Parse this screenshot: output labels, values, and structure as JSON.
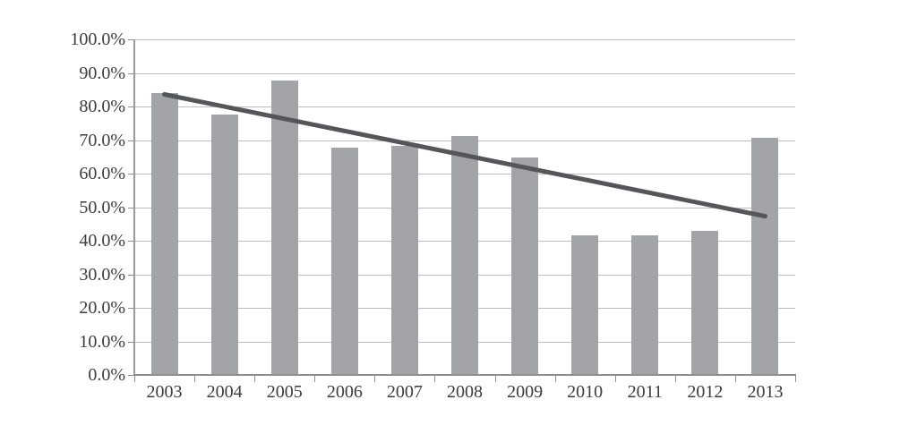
{
  "chart_data": {
    "type": "bar",
    "title": "",
    "xlabel": "",
    "ylabel": "",
    "categories": [
      "2003",
      "2004",
      "2005",
      "2006",
      "2007",
      "2008",
      "2009",
      "2010",
      "2011",
      "2012",
      "2013"
    ],
    "values": [
      83.9,
      77.6,
      87.8,
      67.7,
      68.4,
      71.3,
      64.9,
      41.6,
      41.6,
      43.0,
      70.7
    ],
    "ylim": [
      0,
      100
    ],
    "y_tick_step": 10,
    "y_tick_labels": [
      "0.0%",
      "10.0%",
      "20.0%",
      "30.0%",
      "40.0%",
      "50.0%",
      "60.0%",
      "70.0%",
      "80.0%",
      "90.0%",
      "100.0%"
    ],
    "grid": "horizontal",
    "legend": "none",
    "trendline": {
      "type": "linear",
      "start_category": "2003",
      "end_category": "2013",
      "start_value": 83.6,
      "end_value": 47.3
    },
    "colors": {
      "bar": "#a3a4a8",
      "trendline": "#55565a",
      "gridline": "#bdbdbd",
      "axis": "#8f8f8f",
      "tick_label": "#3d3d3f",
      "background": "#ffffff"
    }
  }
}
